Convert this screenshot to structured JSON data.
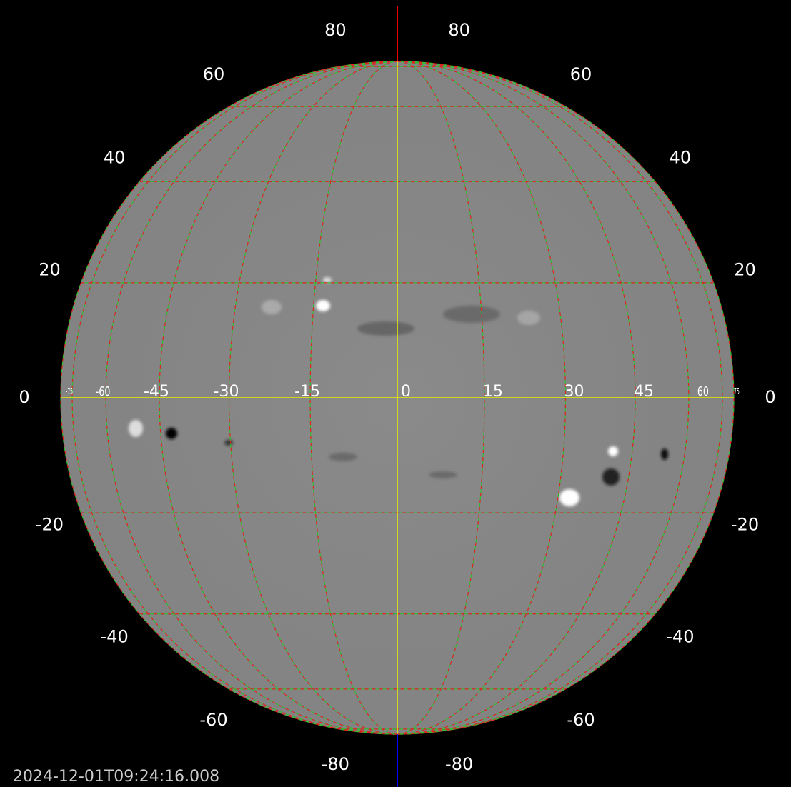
{
  "timestamp": "2024-12-01T09:24:16.008",
  "latitude_labels": [
    80,
    60,
    40,
    20,
    0,
    -20,
    -40,
    -60,
    -80
  ],
  "longitude_labels": [
    -75,
    -60,
    -45,
    -30,
    -15,
    0,
    15,
    30,
    45,
    60,
    75
  ]
}
